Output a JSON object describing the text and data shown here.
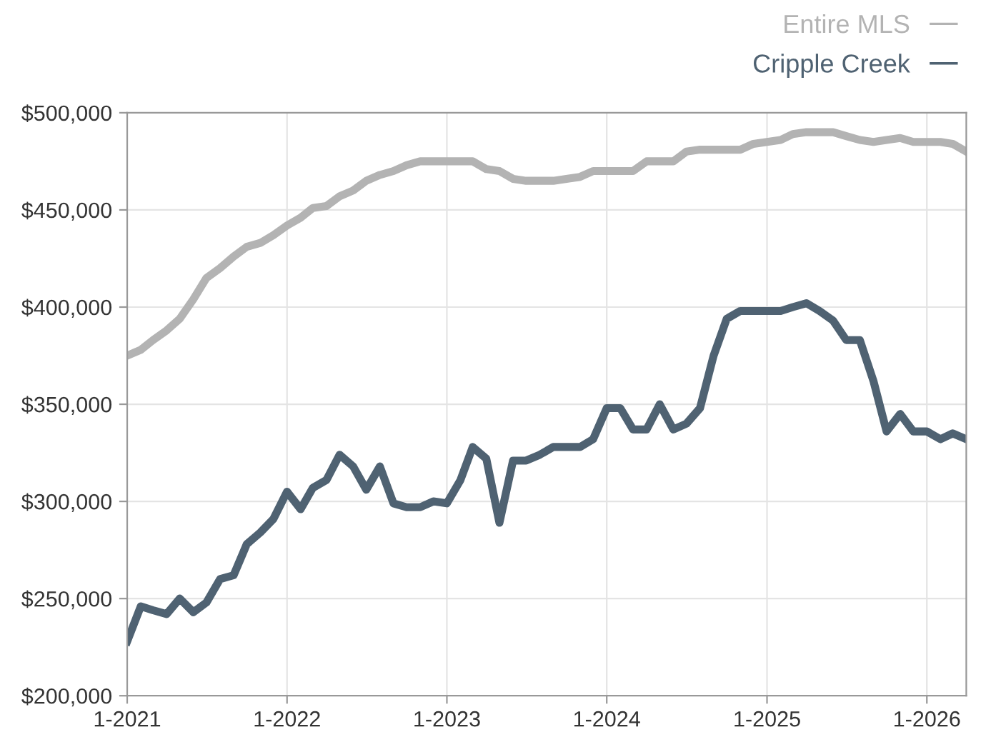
{
  "chart_data": {
    "type": "line",
    "x": [
      "2021-01",
      "2021-02",
      "2021-03",
      "2021-04",
      "2021-05",
      "2021-06",
      "2021-07",
      "2021-08",
      "2021-09",
      "2021-10",
      "2021-11",
      "2021-12",
      "2022-01",
      "2022-02",
      "2022-03",
      "2022-04",
      "2022-05",
      "2022-06",
      "2022-07",
      "2022-08",
      "2022-09",
      "2022-10",
      "2022-11",
      "2022-12",
      "2023-01",
      "2023-02",
      "2023-03",
      "2023-04",
      "2023-05",
      "2023-06",
      "2023-07",
      "2023-08",
      "2023-09",
      "2023-10",
      "2023-11",
      "2023-12",
      "2024-01",
      "2024-02",
      "2024-03",
      "2024-04",
      "2024-05",
      "2024-06",
      "2024-07",
      "2024-08",
      "2024-09",
      "2024-10",
      "2024-11",
      "2024-12",
      "2025-01",
      "2025-02",
      "2025-03",
      "2025-04",
      "2025-05",
      "2025-06",
      "2025-07",
      "2025-08",
      "2025-09",
      "2025-10",
      "2025-11",
      "2025-12",
      "2026-01",
      "2026-02",
      "2026-03",
      "2026-04"
    ],
    "series": [
      {
        "name": "Entire MLS",
        "color": "#b3b3b3",
        "values": [
          375000,
          378000,
          383000,
          388000,
          394000,
          404000,
          415000,
          420000,
          426000,
          431000,
          433000,
          437000,
          442000,
          446000,
          451000,
          452000,
          457000,
          460000,
          465000,
          468000,
          470000,
          473000,
          475000,
          475000,
          475000,
          475000,
          475000,
          471000,
          470000,
          466000,
          465000,
          465000,
          465000,
          466000,
          467000,
          470000,
          470000,
          470000,
          470000,
          475000,
          475000,
          475000,
          480000,
          481000,
          481000,
          481000,
          481000,
          484000,
          485000,
          486000,
          489000,
          490000,
          490000,
          490000,
          488000,
          486000,
          485000,
          486000,
          487000,
          485000,
          485000,
          485000,
          484000,
          480000
        ]
      },
      {
        "name": "Cripple Creek",
        "color": "#4f6272",
        "values": [
          228000,
          246000,
          244000,
          242000,
          250000,
          243000,
          248000,
          260000,
          262000,
          278000,
          284000,
          291000,
          305000,
          296000,
          307000,
          311000,
          324000,
          318000,
          306000,
          318000,
          299000,
          297000,
          297000,
          300000,
          299000,
          311000,
          328000,
          322000,
          289000,
          321000,
          321000,
          324000,
          328000,
          328000,
          328000,
          332000,
          348000,
          348000,
          337000,
          337000,
          350000,
          337000,
          340000,
          348000,
          375000,
          394000,
          398000,
          398000,
          398000,
          398000,
          400000,
          402000,
          398000,
          393000,
          383000,
          383000,
          362000,
          336000,
          345000,
          336000,
          336000,
          332000,
          335000,
          332000
        ]
      }
    ],
    "xlim": [
      "2021-01",
      "2026-04"
    ],
    "xticks": [
      {
        "value": "2021-01",
        "label": "1-2021"
      },
      {
        "value": "2022-01",
        "label": "1-2022"
      },
      {
        "value": "2023-01",
        "label": "1-2023"
      },
      {
        "value": "2024-01",
        "label": "1-2024"
      },
      {
        "value": "2025-01",
        "label": "1-2025"
      },
      {
        "value": "2026-01",
        "label": "1-2026"
      }
    ],
    "ylim": [
      200000,
      500000
    ],
    "yticks": [
      {
        "value": 200000,
        "label": "$200,000"
      },
      {
        "value": 250000,
        "label": "$250,000"
      },
      {
        "value": 300000,
        "label": "$300,000"
      },
      {
        "value": 350000,
        "label": "$350,000"
      },
      {
        "value": 400000,
        "label": "$400,000"
      },
      {
        "value": 450000,
        "label": "$450,000"
      },
      {
        "value": 500000,
        "label": "$500,000"
      }
    ],
    "grid": true,
    "legend": "top right",
    "marker": "none",
    "line_style": "solid"
  }
}
